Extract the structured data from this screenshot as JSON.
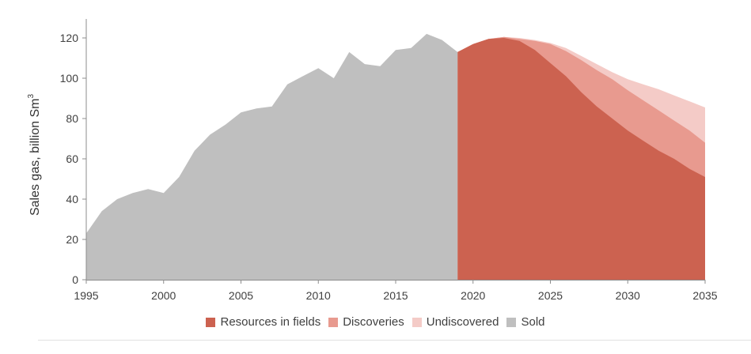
{
  "chart_data": {
    "type": "area",
    "title": "",
    "xlabel": "",
    "ylabel": "Sales gas, billion Sm",
    "ylabel_superscript": "3",
    "xlim": [
      1995,
      2035
    ],
    "ylim": [
      0,
      120
    ],
    "x_ticks": [
      1995,
      2000,
      2005,
      2010,
      2015,
      2020,
      2025,
      2030,
      2035
    ],
    "y_ticks": [
      0,
      20,
      40,
      60,
      80,
      100,
      120
    ],
    "grid": false,
    "legend_position": "bottom",
    "series": [
      {
        "name": "Sold",
        "color": "#bfbfbf",
        "x": [
          1995,
          1996,
          1997,
          1998,
          1999,
          2000,
          2001,
          2002,
          2003,
          2004,
          2005,
          2006,
          2007,
          2008,
          2009,
          2010,
          2011,
          2012,
          2013,
          2014,
          2015,
          2016,
          2017,
          2018,
          2019
        ],
        "values": [
          23,
          34,
          40,
          43,
          45,
          43,
          51,
          64,
          72,
          77,
          83,
          85,
          86,
          97,
          101,
          105,
          100,
          113,
          107,
          106,
          114,
          115,
          122,
          119,
          113
        ]
      },
      {
        "name": "Resources in fields",
        "color": "#cc6250",
        "x": [
          2019,
          2020,
          2021,
          2022,
          2023,
          2024,
          2025,
          2026,
          2027,
          2028,
          2029,
          2030,
          2031,
          2032,
          2033,
          2034,
          2035
        ],
        "values": [
          113,
          117,
          119.5,
          120,
          118.5,
          114,
          107.5,
          101,
          93,
          86,
          80,
          74,
          69,
          64,
          60,
          55,
          51
        ]
      },
      {
        "name": "Discoveries",
        "color": "#e89a8f",
        "x": [
          2019,
          2020,
          2021,
          2022,
          2023,
          2024,
          2025,
          2026,
          2027,
          2028,
          2029,
          2030,
          2031,
          2032,
          2033,
          2034,
          2035
        ],
        "values": [
          113,
          117,
          119.5,
          120.5,
          119.5,
          118.5,
          117,
          113.5,
          109,
          104,
          99.5,
          94,
          89,
          84,
          79,
          74,
          68
        ]
      },
      {
        "name": "Undiscovered",
        "color": "#f4cbc7",
        "x": [
          2019,
          2020,
          2021,
          2022,
          2023,
          2024,
          2025,
          2026,
          2027,
          2028,
          2029,
          2030,
          2031,
          2032,
          2033,
          2034,
          2035
        ],
        "values": [
          113,
          117,
          119.5,
          120.5,
          120,
          119,
          117.5,
          115,
          111,
          107,
          103,
          99.5,
          97,
          94.5,
          91.5,
          88.5,
          85.5
        ]
      }
    ],
    "legend": [
      {
        "name": "Resources in fields",
        "color": "#cc6250"
      },
      {
        "name": "Discoveries",
        "color": "#e89a8f"
      },
      {
        "name": "Undiscovered",
        "color": "#f4cbc7"
      },
      {
        "name": "Sold",
        "color": "#bfbfbf"
      }
    ]
  }
}
